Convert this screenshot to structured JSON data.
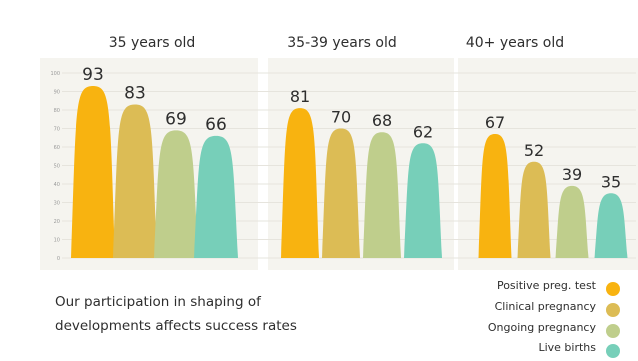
{
  "chart_data": {
    "type": "bar",
    "title": "",
    "xlabel": "",
    "ylabel": "",
    "ylim": [
      0,
      100
    ],
    "y_ticks": [
      0,
      10,
      20,
      30,
      40,
      50,
      60,
      70,
      80,
      90,
      100
    ],
    "grid": true,
    "legend_position": "bottom-right",
    "categories": [
      "35 years old",
      "35-39 years old",
      "40+ years old"
    ],
    "series": [
      {
        "name": "Positive preg. test",
        "color": "#f8b310",
        "values": [
          93,
          81,
          67
        ]
      },
      {
        "name": "Clinical pregnancy",
        "color": "#dcbc55",
        "values": [
          83,
          70,
          52
        ]
      },
      {
        "name": "Ongoing pregnancy",
        "color": "#bfce8c",
        "values": [
          69,
          68,
          39
        ]
      },
      {
        "name": "Live births",
        "color": "#77cfb9",
        "values": [
          66,
          62,
          35
        ]
      }
    ]
  },
  "footnote": {
    "line1": "Our participation in shaping of",
    "line2": "developments affects success rates"
  },
  "colors": {
    "panel_background": "#f5f4ef",
    "grid": "#e6e4dd",
    "text": "#2e2e2e"
  }
}
